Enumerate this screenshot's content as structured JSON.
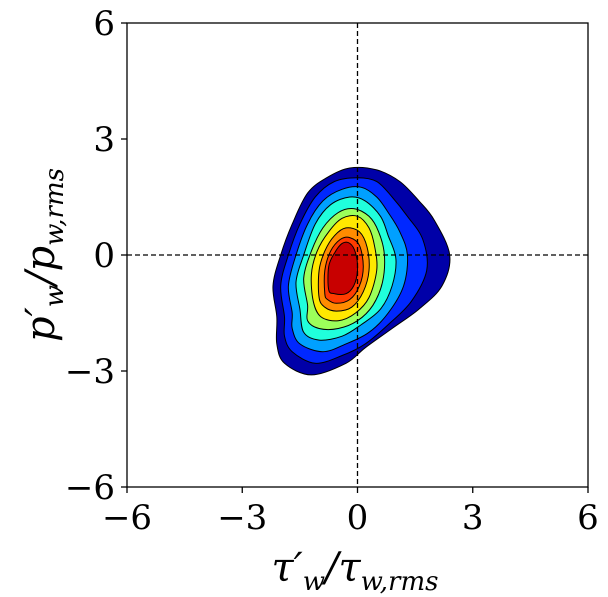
{
  "chart_data": {
    "type": "contour",
    "title": "",
    "xlabel": {
      "main": "τ′",
      "sub": "w",
      "denom": "τ",
      "denom_sub": "w,rms"
    },
    "ylabel": {
      "main": "p′",
      "sub": "w",
      "denom": "p",
      "denom_sub": "w,rms"
    },
    "xlim": [
      -6,
      6
    ],
    "ylim": [
      -6,
      6
    ],
    "xticks": [
      -6,
      -3,
      0,
      3,
      6
    ],
    "yticks": [
      -6,
      -3,
      0,
      3,
      6
    ],
    "xtick_labels": [
      "−6",
      "−3",
      "0",
      "3",
      "6"
    ],
    "ytick_labels": [
      "−6",
      "−3",
      "0",
      "3",
      "6"
    ],
    "reference_lines": {
      "x": 0,
      "y": 0,
      "style": "dashed"
    },
    "colormap": "jet",
    "levels": [
      {
        "level": 1,
        "color": "#0000a8",
        "outline": [
          [
            -2.1,
            -1.6
          ],
          [
            -2.2,
            -0.8
          ],
          [
            -2.0,
            0.0
          ],
          [
            -1.7,
            0.8
          ],
          [
            -1.3,
            1.6
          ],
          [
            -0.8,
            2.0
          ],
          [
            -0.2,
            2.25
          ],
          [
            0.5,
            2.2
          ],
          [
            1.1,
            1.9
          ],
          [
            1.6,
            1.4
          ],
          [
            2.0,
            0.9
          ],
          [
            2.4,
            0.0
          ],
          [
            2.2,
            -0.8
          ],
          [
            1.6,
            -1.4
          ],
          [
            0.9,
            -1.9
          ],
          [
            0.2,
            -2.4
          ],
          [
            -0.3,
            -2.8
          ],
          [
            -1.2,
            -3.1
          ],
          [
            -1.9,
            -2.8
          ],
          [
            -2.1,
            -2.3
          ]
        ]
      },
      {
        "level": 2,
        "color": "#0028ff",
        "outline": [
          [
            -1.9,
            -1.6
          ],
          [
            -2.0,
            -0.8
          ],
          [
            -1.8,
            0.0
          ],
          [
            -1.5,
            0.8
          ],
          [
            -1.1,
            1.5
          ],
          [
            -0.6,
            1.9
          ],
          [
            0.0,
            2.0
          ],
          [
            0.5,
            1.9
          ],
          [
            0.9,
            1.5
          ],
          [
            1.3,
            1.0
          ],
          [
            1.7,
            0.4
          ],
          [
            1.8,
            -0.4
          ],
          [
            1.4,
            -1.2
          ],
          [
            0.8,
            -1.8
          ],
          [
            0.2,
            -2.3
          ],
          [
            -0.4,
            -2.6
          ],
          [
            -1.1,
            -2.8
          ],
          [
            -1.7,
            -2.5
          ],
          [
            -1.9,
            -2.1
          ]
        ]
      },
      {
        "level": 3,
        "color": "#00a0ff",
        "outline": [
          [
            -1.7,
            -1.5
          ],
          [
            -1.8,
            -0.8
          ],
          [
            -1.6,
            0.0
          ],
          [
            -1.3,
            0.8
          ],
          [
            -0.9,
            1.4
          ],
          [
            -0.4,
            1.7
          ],
          [
            0.1,
            1.75
          ],
          [
            0.5,
            1.5
          ],
          [
            0.8,
            1.1
          ],
          [
            1.1,
            0.6
          ],
          [
            1.3,
            0.0
          ],
          [
            1.2,
            -0.8
          ],
          [
            0.8,
            -1.5
          ],
          [
            0.3,
            -2.0
          ],
          [
            -0.3,
            -2.3
          ],
          [
            -0.9,
            -2.5
          ],
          [
            -1.5,
            -2.3
          ],
          [
            -1.7,
            -1.9
          ]
        ]
      },
      {
        "level": 4,
        "color": "#20ffdc",
        "outline": [
          [
            -1.5,
            -1.4
          ],
          [
            -1.6,
            -0.7
          ],
          [
            -1.4,
            0.0
          ],
          [
            -1.1,
            0.8
          ],
          [
            -0.7,
            1.3
          ],
          [
            -0.2,
            1.5
          ],
          [
            0.2,
            1.4
          ],
          [
            0.6,
            1.0
          ],
          [
            0.8,
            0.5
          ],
          [
            1.0,
            -0.1
          ],
          [
            0.9,
            -0.8
          ],
          [
            0.6,
            -1.4
          ],
          [
            0.1,
            -1.8
          ],
          [
            -0.4,
            -2.1
          ],
          [
            -1.0,
            -2.2
          ],
          [
            -1.4,
            -2.0
          ]
        ]
      },
      {
        "level": 5,
        "color": "#9cff5a",
        "outline": [
          [
            -1.3,
            -1.3
          ],
          [
            -1.4,
            -0.6
          ],
          [
            -1.2,
            0.1
          ],
          [
            -0.9,
            0.7
          ],
          [
            -0.5,
            1.1
          ],
          [
            -0.1,
            1.2
          ],
          [
            0.3,
            1.0
          ],
          [
            0.55,
            0.6
          ],
          [
            0.7,
            0.0
          ],
          [
            0.65,
            -0.7
          ],
          [
            0.4,
            -1.3
          ],
          [
            0.0,
            -1.7
          ],
          [
            -0.5,
            -1.9
          ],
          [
            -1.0,
            -1.9
          ],
          [
            -1.3,
            -1.7
          ]
        ]
      },
      {
        "level": 6,
        "color": "#ffe800",
        "outline": [
          [
            -1.15,
            -1.2
          ],
          [
            -1.2,
            -0.5
          ],
          [
            -1.05,
            0.1
          ],
          [
            -0.75,
            0.6
          ],
          [
            -0.4,
            0.95
          ],
          [
            0.0,
            1.0
          ],
          [
            0.3,
            0.7
          ],
          [
            0.45,
            0.2
          ],
          [
            0.5,
            -0.4
          ],
          [
            0.3,
            -1.1
          ],
          [
            -0.05,
            -1.5
          ],
          [
            -0.5,
            -1.7
          ],
          [
            -0.95,
            -1.6
          ]
        ]
      },
      {
        "level": 7,
        "color": "#ff8c00",
        "outline": [
          [
            -1.0,
            -1.1
          ],
          [
            -1.0,
            -0.4
          ],
          [
            -0.85,
            0.1
          ],
          [
            -0.6,
            0.5
          ],
          [
            -0.3,
            0.7
          ],
          [
            0.05,
            0.6
          ],
          [
            0.25,
            0.2
          ],
          [
            0.3,
            -0.4
          ],
          [
            0.15,
            -0.95
          ],
          [
            -0.15,
            -1.35
          ],
          [
            -0.55,
            -1.45
          ],
          [
            -0.85,
            -1.35
          ]
        ]
      },
      {
        "level": 8,
        "color": "#ff3c00",
        "outline": [
          [
            -0.85,
            -1.0
          ],
          [
            -0.85,
            -0.4
          ],
          [
            -0.7,
            0.1
          ],
          [
            -0.45,
            0.4
          ],
          [
            -0.2,
            0.45
          ],
          [
            0.05,
            0.25
          ],
          [
            0.15,
            -0.3
          ],
          [
            0.05,
            -0.8
          ],
          [
            -0.2,
            -1.15
          ],
          [
            -0.55,
            -1.25
          ],
          [
            -0.78,
            -1.15
          ]
        ]
      },
      {
        "level": 9,
        "color": "#c80000",
        "outline": [
          [
            -0.75,
            -0.9
          ],
          [
            -0.75,
            -0.3
          ],
          [
            -0.6,
            0.05
          ],
          [
            -0.4,
            0.3
          ],
          [
            -0.2,
            0.3
          ],
          [
            -0.05,
            0.05
          ],
          [
            0.0,
            -0.4
          ],
          [
            -0.1,
            -0.8
          ],
          [
            -0.3,
            -1.0
          ],
          [
            -0.6,
            -1.0
          ]
        ]
      }
    ]
  }
}
